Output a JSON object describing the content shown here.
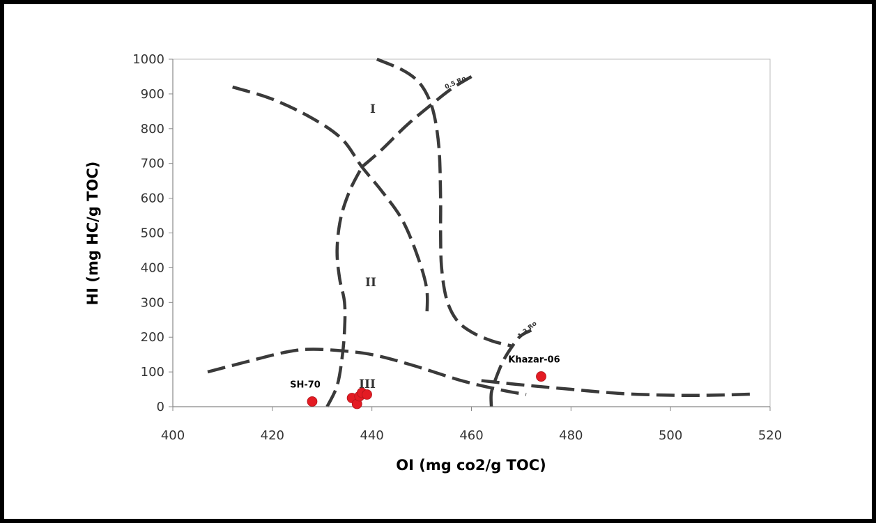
{
  "chart_data": {
    "type": "scatter",
    "title": "",
    "xlabel": "OI (mg co2/g TOC)",
    "ylabel": "HI (mg HC/g TOC)",
    "xlim": [
      400,
      520
    ],
    "ylim": [
      0,
      1000
    ],
    "x_ticks": [
      "400",
      "420",
      "440",
      "460",
      "480",
      "500",
      "520"
    ],
    "y_ticks": [
      "0",
      "100",
      "200",
      "300",
      "400",
      "500",
      "600",
      "700",
      "800",
      "900",
      "1000"
    ],
    "grid": false,
    "legend": "none",
    "marker_color": "#e31b23",
    "series": [
      {
        "points": [
          {
            "x": 428,
            "y": 15,
            "label": "SH-70"
          },
          {
            "x": 436,
            "y": 25
          },
          {
            "x": 437,
            "y": 8
          },
          {
            "x": 437.5,
            "y": 30
          },
          {
            "x": 438,
            "y": 40
          },
          {
            "x": 439,
            "y": 35
          },
          {
            "x": 474,
            "y": 87,
            "label": "Khazar-06"
          }
        ]
      }
    ],
    "overlay_labels": {
      "type_i": "I",
      "type_ii": "II",
      "type_iii": "III",
      "ro_05": "0.5 Ro",
      "ro_13": "1.3 Ro"
    },
    "overlay_curves": [
      {
        "points": [
          [
            441,
            1000
          ],
          [
            446,
            970
          ],
          [
            449,
            940
          ],
          [
            451,
            900
          ],
          [
            452.5,
            840
          ],
          [
            453.5,
            740
          ],
          [
            453.8,
            600
          ],
          [
            453.8,
            500
          ],
          [
            454,
            400
          ],
          [
            455,
            310
          ],
          [
            457,
            250
          ],
          [
            460,
            215
          ],
          [
            464,
            190
          ],
          [
            468,
            175
          ]
        ]
      },
      {
        "points": [
          [
            412,
            920
          ],
          [
            420,
            885
          ],
          [
            428,
            830
          ],
          [
            434,
            770
          ],
          [
            438,
            690
          ],
          [
            442,
            620
          ],
          [
            446,
            540
          ],
          [
            449,
            440
          ],
          [
            451,
            340
          ],
          [
            451,
            255
          ]
        ]
      },
      {
        "points": [
          [
            438,
            690
          ],
          [
            442,
            740
          ],
          [
            447,
            810
          ],
          [
            452,
            870
          ],
          [
            456,
            915
          ],
          [
            460,
            950
          ]
        ]
      },
      {
        "points": [
          [
            431,
            0
          ],
          [
            433,
            60
          ],
          [
            434,
            140
          ],
          [
            434.5,
            220
          ],
          [
            434.5,
            300
          ],
          [
            433.5,
            370
          ],
          [
            433,
            450
          ],
          [
            433.7,
            540
          ],
          [
            435.5,
            620
          ],
          [
            438,
            690
          ]
        ]
      },
      {
        "points": [
          [
            407,
            100
          ],
          [
            415,
            130
          ],
          [
            422,
            155
          ],
          [
            427,
            165
          ],
          [
            433,
            162
          ],
          [
            440,
            150
          ],
          [
            448,
            120
          ],
          [
            458,
            75
          ],
          [
            466,
            48
          ],
          [
            471,
            35
          ]
        ]
      },
      {
        "points": [
          [
            464,
            0
          ],
          [
            464,
            40
          ],
          [
            465,
            85
          ],
          [
            466.5,
            135
          ],
          [
            468.5,
            180
          ],
          [
            470,
            205
          ],
          [
            472,
            220
          ]
        ]
      },
      {
        "points": [
          [
            462,
            75
          ],
          [
            470,
            63
          ],
          [
            480,
            50
          ],
          [
            490,
            38
          ],
          [
            500,
            33
          ],
          [
            508,
            33
          ],
          [
            516,
            36
          ]
        ]
      }
    ]
  }
}
